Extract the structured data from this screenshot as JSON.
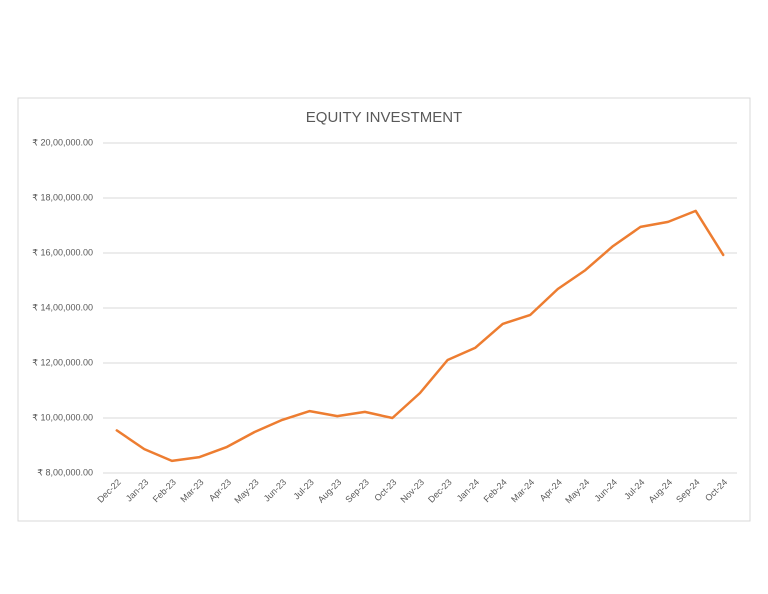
{
  "chart_data": {
    "type": "line",
    "title": "EQUITY INVESTMENT",
    "categories": [
      "Dec-22",
      "Jan-23",
      "Feb-23",
      "Mar-23",
      "Apr-23",
      "May-23",
      "Jun-23",
      "Jul-23",
      "Aug-23",
      "Sep-23",
      "Oct-23",
      "Nov-23",
      "Dec-23",
      "Jan-24",
      "Feb-24",
      "Mar-24",
      "Apr-24",
      "May-24",
      "Jun-24",
      "Jul-24",
      "Aug-24",
      "Sep-24",
      "Oct-24"
    ],
    "values": [
      955000,
      887000,
      844000,
      858000,
      895000,
      949000,
      993000,
      1025000,
      1007000,
      1022000,
      1000000,
      1091000,
      1211000,
      1255000,
      1342000,
      1375000,
      1469000,
      1538000,
      1625000,
      1695000,
      1713000,
      1753000,
      1593000
    ],
    "color": "#ed7d31",
    "ylim": [
      800000,
      2000000
    ],
    "yticks": [
      {
        "value": 800000,
        "label": "₹ 8,00,000.00"
      },
      {
        "value": 1000000,
        "label": "₹ 10,00,000.00"
      },
      {
        "value": 1200000,
        "label": "₹ 12,00,000.00"
      },
      {
        "value": 1400000,
        "label": "₹ 14,00,000.00"
      },
      {
        "value": 1600000,
        "label": "₹ 16,00,000.00"
      },
      {
        "value": 1800000,
        "label": "₹ 18,00,000.00"
      },
      {
        "value": 2000000,
        "label": "₹ 20,00,000.00"
      }
    ],
    "grid": true
  }
}
